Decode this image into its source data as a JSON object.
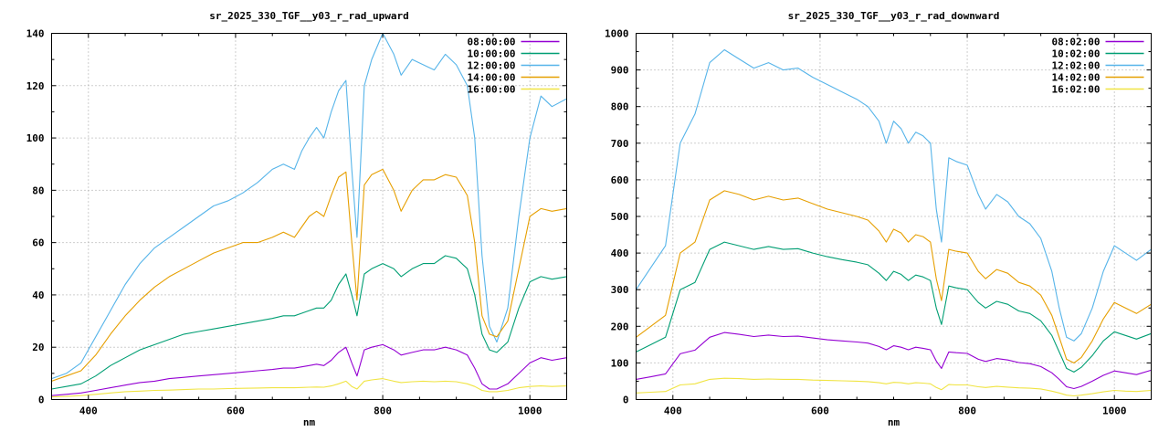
{
  "page": {
    "background": "#ffffff",
    "text_color": "#000000",
    "grid_color": "#9e9e9e"
  },
  "chart_data": [
    {
      "type": "line",
      "title": "sr_2025_330_TGF__y03_r_rad_upward",
      "xlabel": "nm",
      "xlim": [
        350,
        1050
      ],
      "ylim": [
        0,
        140
      ],
      "xticks": [
        400,
        600,
        800,
        1000
      ],
      "xminor_step": 50,
      "ytick_step": 20,
      "yminor_step": 10,
      "grid": true,
      "legend_position": "top-right",
      "x": [
        350,
        370,
        390,
        410,
        430,
        450,
        470,
        490,
        510,
        530,
        550,
        570,
        590,
        610,
        630,
        650,
        665,
        680,
        690,
        700,
        710,
        720,
        730,
        740,
        750,
        758,
        765,
        775,
        785,
        800,
        815,
        825,
        840,
        855,
        870,
        885,
        900,
        915,
        925,
        935,
        945,
        955,
        970,
        985,
        1000,
        1015,
        1030,
        1050
      ],
      "series": [
        {
          "name": "08:00:00",
          "color": "#9400d3",
          "values": [
            1.5,
            2,
            2.5,
            3.5,
            4.5,
            5.5,
            6.5,
            7,
            8,
            8.5,
            9,
            9.5,
            10,
            10.5,
            11,
            11.5,
            12,
            12,
            12.5,
            13,
            13.5,
            13,
            15,
            18,
            20,
            14,
            9,
            19,
            20,
            21,
            19,
            17,
            18,
            19,
            19,
            20,
            19,
            17,
            12,
            6,
            4,
            4,
            6,
            10,
            14,
            16,
            15,
            16
          ]
        },
        {
          "name": "10:00:00",
          "color": "#009e73",
          "values": [
            4,
            5,
            6,
            9,
            13,
            16,
            19,
            21,
            23,
            25,
            26,
            27,
            28,
            29,
            30,
            31,
            32,
            32,
            33,
            34,
            35,
            35,
            38,
            44,
            48,
            40,
            32,
            48,
            50,
            52,
            50,
            47,
            50,
            52,
            52,
            55,
            54,
            50,
            40,
            25,
            19,
            18,
            22,
            35,
            45,
            47,
            46,
            47
          ]
        },
        {
          "name": "12:00:00",
          "color": "#56b4e9",
          "values": [
            8,
            10,
            14,
            24,
            34,
            44,
            52,
            58,
            62,
            66,
            70,
            74,
            76,
            79,
            83,
            88,
            90,
            88,
            95,
            100,
            104,
            100,
            110,
            118,
            122,
            88,
            62,
            120,
            130,
            140,
            132,
            124,
            130,
            128,
            126,
            132,
            128,
            120,
            100,
            55,
            28,
            22,
            35,
            70,
            100,
            116,
            112,
            115
          ]
        },
        {
          "name": "14:00:00",
          "color": "#e69f00",
          "values": [
            7,
            9,
            11,
            17,
            25,
            32,
            38,
            43,
            47,
            50,
            53,
            56,
            58,
            60,
            60,
            62,
            64,
            62,
            66,
            70,
            72,
            70,
            78,
            85,
            87,
            60,
            38,
            82,
            86,
            88,
            80,
            72,
            80,
            84,
            84,
            86,
            85,
            78,
            60,
            32,
            25,
            24,
            30,
            50,
            70,
            73,
            72,
            73
          ]
        },
        {
          "name": "16:00:00",
          "color": "#f0e442",
          "values": [
            1,
            1.2,
            1.5,
            2,
            2.5,
            3,
            3.2,
            3.5,
            3.6,
            3.8,
            4,
            4,
            4.2,
            4.3,
            4.4,
            4.5,
            4.5,
            4.5,
            4.6,
            4.7,
            4.8,
            4.7,
            5.2,
            6,
            7,
            5,
            4,
            7,
            7.5,
            8,
            7,
            6.5,
            6.8,
            7,
            6.8,
            7,
            6.8,
            6,
            5,
            3.5,
            3,
            3,
            3.5,
            4.5,
            5,
            5.2,
            5,
            5.2
          ]
        }
      ]
    },
    {
      "type": "line",
      "title": "sr_2025_330_TGF__y03_r_rad_downward",
      "xlabel": "nm",
      "xlim": [
        350,
        1050
      ],
      "ylim": [
        0,
        1000
      ],
      "xticks": [
        400,
        600,
        800,
        1000
      ],
      "xminor_step": 50,
      "ytick_step": 100,
      "yminor_step": 50,
      "grid": true,
      "legend_position": "top-right",
      "x": [
        350,
        370,
        390,
        410,
        430,
        450,
        470,
        490,
        510,
        530,
        550,
        570,
        590,
        610,
        630,
        650,
        665,
        680,
        690,
        700,
        710,
        720,
        730,
        740,
        750,
        758,
        765,
        775,
        785,
        800,
        815,
        825,
        840,
        855,
        870,
        885,
        900,
        915,
        925,
        935,
        945,
        955,
        970,
        985,
        1000,
        1015,
        1030,
        1050
      ],
      "series": [
        {
          "name": "08:02:00",
          "color": "#9400d3",
          "values": [
            55,
            62,
            70,
            125,
            135,
            170,
            183,
            178,
            172,
            176,
            172,
            173,
            168,
            163,
            160,
            157,
            154,
            145,
            136,
            147,
            143,
            136,
            143,
            140,
            136,
            105,
            85,
            130,
            128,
            126,
            110,
            104,
            112,
            108,
            101,
            98,
            90,
            73,
            55,
            35,
            30,
            36,
            50,
            66,
            78,
            73,
            68,
            80
          ]
        },
        {
          "name": "10:02:00",
          "color": "#009e73",
          "values": [
            130,
            150,
            170,
            300,
            320,
            410,
            430,
            420,
            410,
            418,
            410,
            412,
            400,
            390,
            382,
            375,
            368,
            345,
            325,
            350,
            342,
            325,
            340,
            335,
            325,
            250,
            205,
            310,
            305,
            300,
            265,
            250,
            268,
            260,
            242,
            235,
            215,
            175,
            130,
            85,
            75,
            88,
            120,
            160,
            185,
            175,
            165,
            180
          ]
        },
        {
          "name": "12:02:00",
          "color": "#56b4e9",
          "values": [
            300,
            360,
            420,
            700,
            780,
            920,
            955,
            930,
            905,
            920,
            900,
            905,
            880,
            860,
            840,
            820,
            800,
            760,
            700,
            760,
            740,
            700,
            730,
            720,
            700,
            520,
            430,
            660,
            650,
            640,
            560,
            520,
            560,
            540,
            500,
            480,
            440,
            350,
            250,
            170,
            160,
            180,
            250,
            350,
            420,
            400,
            380,
            410
          ]
        },
        {
          "name": "14:02:00",
          "color": "#e69f00",
          "values": [
            170,
            200,
            230,
            400,
            430,
            545,
            570,
            560,
            545,
            555,
            545,
            550,
            535,
            520,
            510,
            500,
            490,
            460,
            430,
            465,
            455,
            430,
            450,
            445,
            430,
            330,
            270,
            410,
            405,
            400,
            350,
            330,
            355,
            345,
            320,
            310,
            285,
            230,
            170,
            110,
            100,
            115,
            160,
            220,
            265,
            250,
            235,
            260
          ]
        },
        {
          "name": "16:02:00",
          "color": "#f0e442",
          "values": [
            18,
            20,
            22,
            40,
            43,
            55,
            58,
            57,
            55,
            56,
            55,
            55,
            53,
            52,
            51,
            50,
            49,
            46,
            43,
            47,
            46,
            43,
            46,
            45,
            43,
            33,
            27,
            41,
            40,
            40,
            35,
            33,
            36,
            34,
            32,
            31,
            29,
            23,
            18,
            12,
            10,
            12,
            16,
            21,
            25,
            23,
            22,
            25
          ]
        }
      ]
    }
  ]
}
